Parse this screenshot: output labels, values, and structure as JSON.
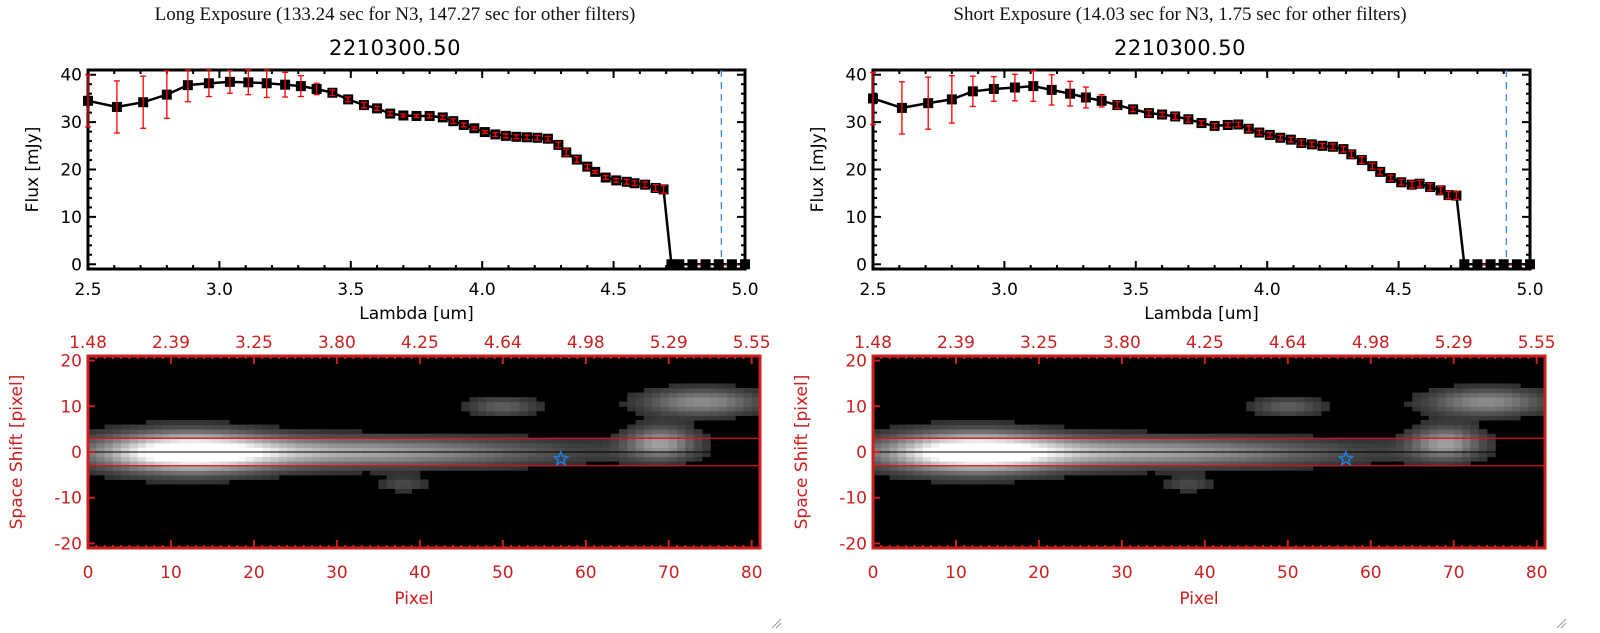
{
  "panels": [
    {
      "exposure_title": "Long Exposure (133.24 sec for N3, 147.27 sec for other filters)",
      "object_title": "2210300.50"
    },
    {
      "exposure_title": "Short Exposure (14.03 sec for N3, 1.75 sec for other filters)",
      "object_title": "2210300.50"
    }
  ],
  "chart_data": [
    {
      "type": "line",
      "title": "2210300.50",
      "subtitle": "Long Exposure (133.24 sec for N3, 147.27 sec for other filters)",
      "xlabel": "Lambda [um]",
      "ylabel": "Flux [mJy]",
      "xlim": [
        2.5,
        5.0
      ],
      "ylim": [
        -1,
        41
      ],
      "xticks": [
        "2.5",
        "3.0",
        "3.5",
        "4.0",
        "4.5",
        "5.0"
      ],
      "yticks": [
        "0",
        "10",
        "20",
        "30",
        "40"
      ],
      "vline_x": 4.91,
      "x": [
        2.5,
        2.61,
        2.71,
        2.8,
        2.88,
        2.96,
        3.04,
        3.11,
        3.18,
        3.25,
        3.31,
        3.37,
        3.43,
        3.49,
        3.55,
        3.6,
        3.65,
        3.7,
        3.75,
        3.8,
        3.85,
        3.89,
        3.93,
        3.97,
        4.01,
        4.05,
        4.09,
        4.13,
        4.17,
        4.21,
        4.25,
        4.29,
        4.32,
        4.36,
        4.4,
        4.43,
        4.47,
        4.51,
        4.55,
        4.58,
        4.62,
        4.66,
        4.69,
        4.72,
        4.75,
        4.8,
        4.85,
        4.9,
        4.95,
        5.0
      ],
      "y": [
        34.5,
        33.2,
        34.2,
        35.8,
        37.8,
        38.2,
        38.5,
        38.4,
        38.2,
        37.9,
        37.6,
        37.0,
        36.2,
        34.8,
        33.6,
        32.9,
        31.8,
        31.4,
        31.3,
        31.3,
        31.0,
        30.2,
        29.4,
        28.7,
        27.9,
        27.4,
        27.1,
        26.9,
        26.8,
        26.7,
        26.5,
        25.2,
        23.6,
        22.1,
        20.6,
        19.5,
        18.3,
        17.7,
        17.4,
        17.1,
        16.8,
        16.1,
        15.8,
        0,
        0,
        0,
        0,
        0,
        0,
        0
      ],
      "yerr": [
        5.5,
        5.5,
        5.5,
        5.0,
        3.5,
        2.8,
        2.4,
        2.6,
        3.0,
        2.6,
        2.2,
        1.2,
        0.6,
        0.5,
        0.6,
        0.4,
        0.4,
        0.3,
        0.3,
        0.4,
        0.4,
        0.5,
        0.4,
        0.3,
        0.3,
        0.4,
        0.4,
        0.4,
        0.5,
        0.5,
        0.5,
        0.6,
        0.7,
        0.6,
        0.5,
        0.3,
        0.4,
        0.4,
        0.5,
        0.5,
        0.6,
        0.7,
        0.8,
        0,
        0,
        0,
        0,
        0,
        0,
        0
      ]
    },
    {
      "type": "heatmap",
      "xlabel": "Pixel",
      "ylabel": "Space Shift [pixel]",
      "xlim": [
        0,
        81
      ],
      "ylim": [
        -21,
        21
      ],
      "xticks": [
        "0",
        "10",
        "20",
        "30",
        "40",
        "50",
        "60",
        "70",
        "80"
      ],
      "yticks": [
        "-20",
        "-10",
        "0",
        "10",
        "20"
      ],
      "top_axis_ticks": [
        "1.48",
        "2.39",
        "3.25",
        "3.80",
        "4.25",
        "4.64",
        "4.98",
        "5.29",
        "5.55"
      ],
      "aperture_lines": [
        3,
        -3
      ],
      "center_line": 0,
      "marker": {
        "shape": "star",
        "x": 57,
        "y": -1.5,
        "color": "#1e7fe0"
      },
      "sources": [
        {
          "x": 12,
          "y": 1,
          "peak": 1.0,
          "sx": 7,
          "sy": 3
        },
        {
          "x": 30,
          "y": 1,
          "peak": 0.62,
          "sx": 18,
          "sy": 2.2
        },
        {
          "x": 69,
          "y": 3,
          "peak": 0.55,
          "sx": 3,
          "sy": 2.5
        },
        {
          "x": 74,
          "y": 12,
          "peak": 0.5,
          "sx": 5,
          "sy": 2
        },
        {
          "x": 50,
          "y": 11,
          "peak": 0.3,
          "sx": 3,
          "sy": 1.4
        },
        {
          "x": 38,
          "y": -6,
          "peak": 0.2,
          "sx": 2,
          "sy": 1.2
        }
      ]
    },
    {
      "type": "line",
      "title": "2210300.50",
      "subtitle": "Short Exposure (14.03 sec for N3, 1.75 sec for other filters)",
      "xlabel": "Lambda [um]",
      "ylabel": "Flux [mJy]",
      "xlim": [
        2.5,
        5.0
      ],
      "ylim": [
        -1,
        41
      ],
      "xticks": [
        "2.5",
        "3.0",
        "3.5",
        "4.0",
        "4.5",
        "5.0"
      ],
      "yticks": [
        "0",
        "10",
        "20",
        "30",
        "40"
      ],
      "vline_x": 4.91,
      "x": [
        2.5,
        2.61,
        2.71,
        2.8,
        2.88,
        2.96,
        3.04,
        3.11,
        3.18,
        3.25,
        3.31,
        3.37,
        3.43,
        3.49,
        3.55,
        3.6,
        3.65,
        3.7,
        3.75,
        3.8,
        3.85,
        3.89,
        3.93,
        3.97,
        4.01,
        4.05,
        4.09,
        4.13,
        4.17,
        4.21,
        4.25,
        4.29,
        4.32,
        4.36,
        4.4,
        4.43,
        4.47,
        4.51,
        4.55,
        4.58,
        4.62,
        4.66,
        4.69,
        4.72,
        4.75,
        4.8,
        4.85,
        4.9,
        4.95,
        5.0
      ],
      "y": [
        35.0,
        33.0,
        34.0,
        34.8,
        36.5,
        37.0,
        37.3,
        37.6,
        36.8,
        36.0,
        35.2,
        34.5,
        33.6,
        32.7,
        31.9,
        31.6,
        31.2,
        30.6,
        29.8,
        29.2,
        29.4,
        29.5,
        28.6,
        27.8,
        27.3,
        26.7,
        26.3,
        25.6,
        25.3,
        25.0,
        24.8,
        24.3,
        23.2,
        22.0,
        20.7,
        19.5,
        18.2,
        17.3,
        16.8,
        17.0,
        16.3,
        15.6,
        14.6,
        14.5,
        0,
        0,
        0,
        0,
        0,
        0
      ],
      "yerr": [
        5.5,
        5.5,
        5.5,
        5.0,
        3.2,
        2.6,
        2.8,
        3.2,
        3.2,
        2.6,
        2.2,
        1.3,
        0.7,
        0.5,
        0.6,
        0.5,
        0.6,
        0.6,
        0.5,
        0.5,
        0.5,
        0.5,
        0.6,
        0.5,
        0.5,
        0.5,
        0.5,
        0.6,
        0.5,
        0.5,
        0.6,
        0.6,
        0.7,
        0.7,
        0.6,
        0.6,
        0.6,
        0.6,
        0.7,
        0.7,
        0.7,
        0.8,
        0.8,
        0.8,
        0,
        0,
        0,
        0,
        0,
        0
      ]
    },
    {
      "type": "heatmap",
      "xlabel": "Pixel",
      "ylabel": "Space Shift [pixel]",
      "xlim": [
        0,
        81
      ],
      "ylim": [
        -21,
        21
      ],
      "xticks": [
        "0",
        "10",
        "20",
        "30",
        "40",
        "50",
        "60",
        "70",
        "80"
      ],
      "yticks": [
        "-20",
        "-10",
        "0",
        "10",
        "20"
      ],
      "top_axis_ticks": [
        "1.48",
        "2.39",
        "3.25",
        "3.80",
        "4.25",
        "4.64",
        "4.98",
        "5.29",
        "5.55"
      ],
      "aperture_lines": [
        3,
        -3
      ],
      "center_line": 0,
      "marker": {
        "shape": "star",
        "x": 57,
        "y": -1.5,
        "color": "#1e7fe0"
      },
      "sources": [
        {
          "x": 12,
          "y": 1,
          "peak": 1.0,
          "sx": 7,
          "sy": 3
        },
        {
          "x": 30,
          "y": 1,
          "peak": 0.62,
          "sx": 18,
          "sy": 2.2
        },
        {
          "x": 69,
          "y": 3,
          "peak": 0.55,
          "sx": 3,
          "sy": 2.5
        },
        {
          "x": 74,
          "y": 12,
          "peak": 0.5,
          "sx": 5,
          "sy": 2
        },
        {
          "x": 50,
          "y": 11,
          "peak": 0.3,
          "sx": 3,
          "sy": 1.4
        },
        {
          "x": 38,
          "y": -6,
          "peak": 0.2,
          "sx": 2,
          "sy": 1.2
        }
      ]
    }
  ],
  "colors": {
    "axis_black": "#000000",
    "axis_red": "#cc1f1f",
    "errorbar": "#ff0000",
    "vline": "#3a8fe0",
    "star": "#1e7fe0"
  }
}
